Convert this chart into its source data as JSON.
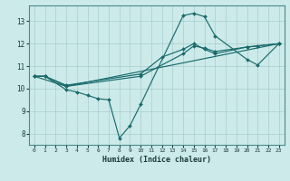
{
  "xlabel": "Humidex (Indice chaleur)",
  "xlim": [
    -0.5,
    23.5
  ],
  "ylim": [
    7.5,
    13.7
  ],
  "yticks": [
    8,
    9,
    10,
    11,
    12,
    13
  ],
  "xticks": [
    0,
    1,
    2,
    3,
    4,
    5,
    6,
    7,
    8,
    9,
    10,
    11,
    12,
    13,
    14,
    15,
    16,
    17,
    18,
    19,
    20,
    21,
    22,
    23
  ],
  "bg_color": "#cceaea",
  "grid_color": "#aacccc",
  "line_color": "#1a6b6b",
  "series": [
    {
      "x": [
        0,
        1,
        3,
        4,
        5,
        6,
        7,
        8,
        9,
        10,
        14,
        15,
        16,
        17,
        20,
        21,
        23
      ],
      "y": [
        10.55,
        10.55,
        9.95,
        9.85,
        9.7,
        9.55,
        9.5,
        7.8,
        8.35,
        9.3,
        13.25,
        13.35,
        13.2,
        12.35,
        11.3,
        11.05,
        12.0
      ]
    },
    {
      "x": [
        0,
        1,
        3,
        23
      ],
      "y": [
        10.55,
        10.55,
        10.1,
        12.0
      ]
    },
    {
      "x": [
        0,
        1,
        3,
        10,
        12,
        14,
        15,
        16,
        17,
        20,
        21,
        23
      ],
      "y": [
        10.55,
        10.55,
        10.15,
        10.65,
        11.4,
        11.75,
        12.0,
        11.75,
        11.55,
        11.85,
        11.9,
        12.0
      ]
    },
    {
      "x": [
        0,
        3,
        10,
        14,
        15,
        16,
        17,
        20,
        21,
        23
      ],
      "y": [
        10.55,
        10.1,
        10.55,
        11.55,
        11.9,
        11.8,
        11.65,
        11.85,
        11.9,
        12.0
      ]
    }
  ]
}
